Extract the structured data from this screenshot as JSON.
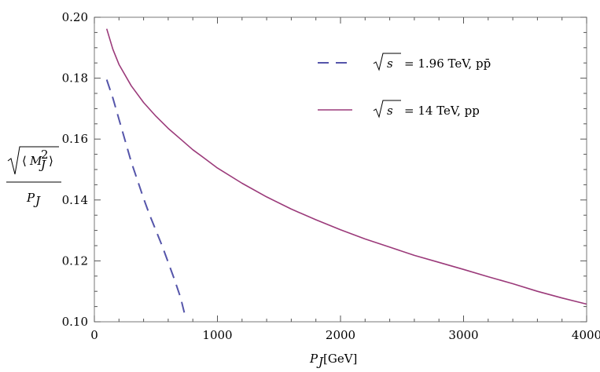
{
  "chart_data": {
    "type": "line",
    "title": "",
    "xlabel": "P_J[GeV]",
    "xlabel_main": "P",
    "xlabel_sub": "J",
    "xlabel_unit": "[GeV]",
    "ylabel": "sqrt(<M_J^2>) / P_J",
    "ylabel_num_open": "⟨",
    "ylabel_num_M": "M",
    "ylabel_num_sup": "2",
    "ylabel_num_sub": "J",
    "ylabel_num_close": "⟩",
    "ylabel_den_main": "P",
    "ylabel_den_sub": "J",
    "xlim": [
      0,
      4000
    ],
    "ylim": [
      0.1,
      0.2
    ],
    "xticks": [
      0,
      1000,
      2000,
      3000,
      4000
    ],
    "xtick_labels": [
      "0",
      "1000",
      "2000",
      "3000",
      "4000"
    ],
    "yticks": [
      0.1,
      0.12,
      0.14,
      0.16,
      0.18,
      0.2
    ],
    "ytick_labels": [
      "0.10",
      "0.12",
      "0.14",
      "0.16",
      "0.18",
      "0.20"
    ],
    "grid": false,
    "legend_position": "top-right",
    "series": [
      {
        "name": "√s = 1.96 TeV, pp̄",
        "legend_prefix": "s",
        "legend_suffix": "= 1.96 TeV, pp̄",
        "color": "#5555aa",
        "style": "dashed",
        "x": [
          100,
          150,
          200,
          250,
          300,
          350,
          400,
          450,
          500,
          550,
          600,
          650,
          700,
          740
        ],
        "y": [
          0.1795,
          0.1735,
          0.1665,
          0.1595,
          0.1525,
          0.1465,
          0.1405,
          0.135,
          0.13,
          0.125,
          0.1195,
          0.114,
          0.108,
          0.1015
        ]
      },
      {
        "name": "√s = 14 TeV, pp",
        "legend_prefix": "s",
        "legend_suffix": "= 14 TeV, pp",
        "color": "#9b3a7a",
        "style": "solid",
        "x": [
          100,
          150,
          200,
          300,
          400,
          500,
          600,
          700,
          800,
          900,
          1000,
          1200,
          1400,
          1600,
          1800,
          2000,
          2200,
          2400,
          2600,
          2800,
          3000,
          3200,
          3400,
          3600,
          3800,
          4000
        ],
        "y": [
          0.1962,
          0.1895,
          0.1845,
          0.1775,
          0.172,
          0.1675,
          0.1635,
          0.16,
          0.1565,
          0.1535,
          0.1505,
          0.1455,
          0.141,
          0.137,
          0.1335,
          0.1302,
          0.1272,
          0.1245,
          0.1218,
          0.1195,
          0.1172,
          0.1148,
          0.1125,
          0.11,
          0.1078,
          0.1058
        ]
      }
    ]
  }
}
